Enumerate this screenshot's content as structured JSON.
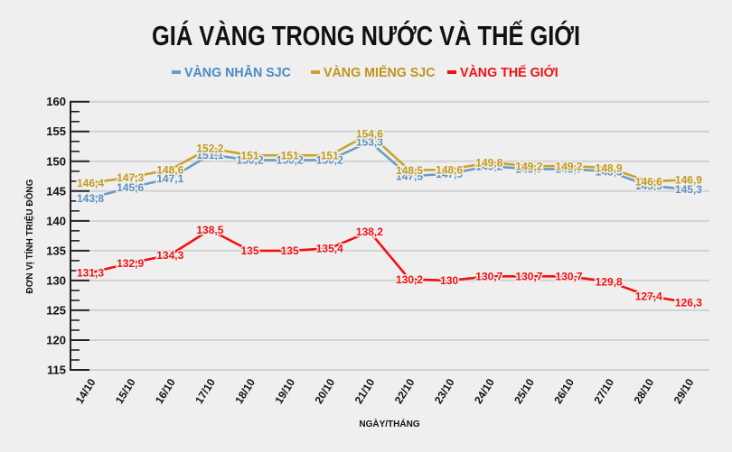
{
  "title": "GIÁ VÀNG TRONG NƯỚC VÀ THẾ GIỚI",
  "legend": [
    {
      "label": "VÀNG NHẪN SJC",
      "color": "#4a8ac4",
      "swatch": "#6b9dc0",
      "x": 190
    },
    {
      "label": "VÀNG MIẾNG SJC",
      "color": "#bf9418",
      "swatch": "#c9a32b",
      "x": 344
    },
    {
      "label": "VÀNG THẾ GIỚI",
      "color": "#f21010",
      "swatch": "#f21010",
      "x": 495
    }
  ],
  "chart_data": {
    "type": "line",
    "title": "GIÁ VÀNG TRONG NƯỚC VÀ THẾ GIỚI",
    "xlabel": "NGÀY/THÁNG",
    "ylabel": "ĐƠN VỊ TÍNH TRIỆU ĐỒNG",
    "ylim": [
      115,
      160
    ],
    "yticks": [
      "115",
      "120",
      "125",
      "130",
      "135",
      "140",
      "145",
      "150",
      "155",
      "160"
    ],
    "grid": true,
    "legend_position": "top",
    "x": [
      "14/10",
      "15/10",
      "16/10",
      "17/10",
      "18/10",
      "19/10",
      "20/10",
      "21/10",
      "22/10",
      "23/10",
      "24/10",
      "25/10",
      "26/10",
      "27/10",
      "28/10",
      "29/10"
    ],
    "series": [
      {
        "name": "VÀNG NHẪN SJC",
        "color": "#6b9dc0",
        "label_color": "#5b8fbd",
        "values": [
          143.8,
          145.6,
          147.1,
          151.1,
          150.2,
          150.2,
          150.2,
          153.3,
          147.5,
          147.9,
          149.2,
          148.7,
          148.7,
          148.3,
          145.9,
          145.3
        ],
        "labels": [
          "143,8",
          "145,6",
          "147,1",
          "151,1",
          "150,2",
          "150,2",
          "150,2",
          "153,3",
          "147,5",
          "147,9",
          "149,2",
          "148,7",
          "148,7",
          "148,3",
          "145,9",
          "145,3"
        ]
      },
      {
        "name": "VÀNG MIẾNG SJC",
        "color": "#c9a32b",
        "label_color": "#c39a1c",
        "values": [
          146.4,
          147.3,
          148.6,
          152.2,
          151,
          151,
          151,
          154.6,
          148.5,
          148.6,
          149.8,
          149.2,
          149.2,
          148.9,
          146.6,
          146.9
        ],
        "labels": [
          "146,4",
          "147,3",
          "148,6",
          "152,2",
          "151",
          "151",
          "151",
          "154,6",
          "148,5",
          "148,6",
          "149,8",
          "149,2",
          "149,2",
          "148,9",
          "146,6",
          "146,9"
        ]
      },
      {
        "name": "VÀNG THẾ GIỚI",
        "color": "#f21010",
        "label_color": "#f21010",
        "values": [
          131.3,
          132.9,
          134.3,
          138.5,
          135,
          135,
          135.4,
          138.2,
          130.2,
          130,
          130.7,
          130.7,
          130.7,
          129.8,
          127.4,
          126.3
        ],
        "labels": [
          "131,3",
          "132,9",
          "134,3",
          "138,5",
          "135",
          "135",
          "135,4",
          "138,2",
          "130,2",
          "130",
          "130,7",
          "130,7",
          "130,7",
          "129,8",
          "127,4",
          "126,3"
        ]
      }
    ]
  }
}
